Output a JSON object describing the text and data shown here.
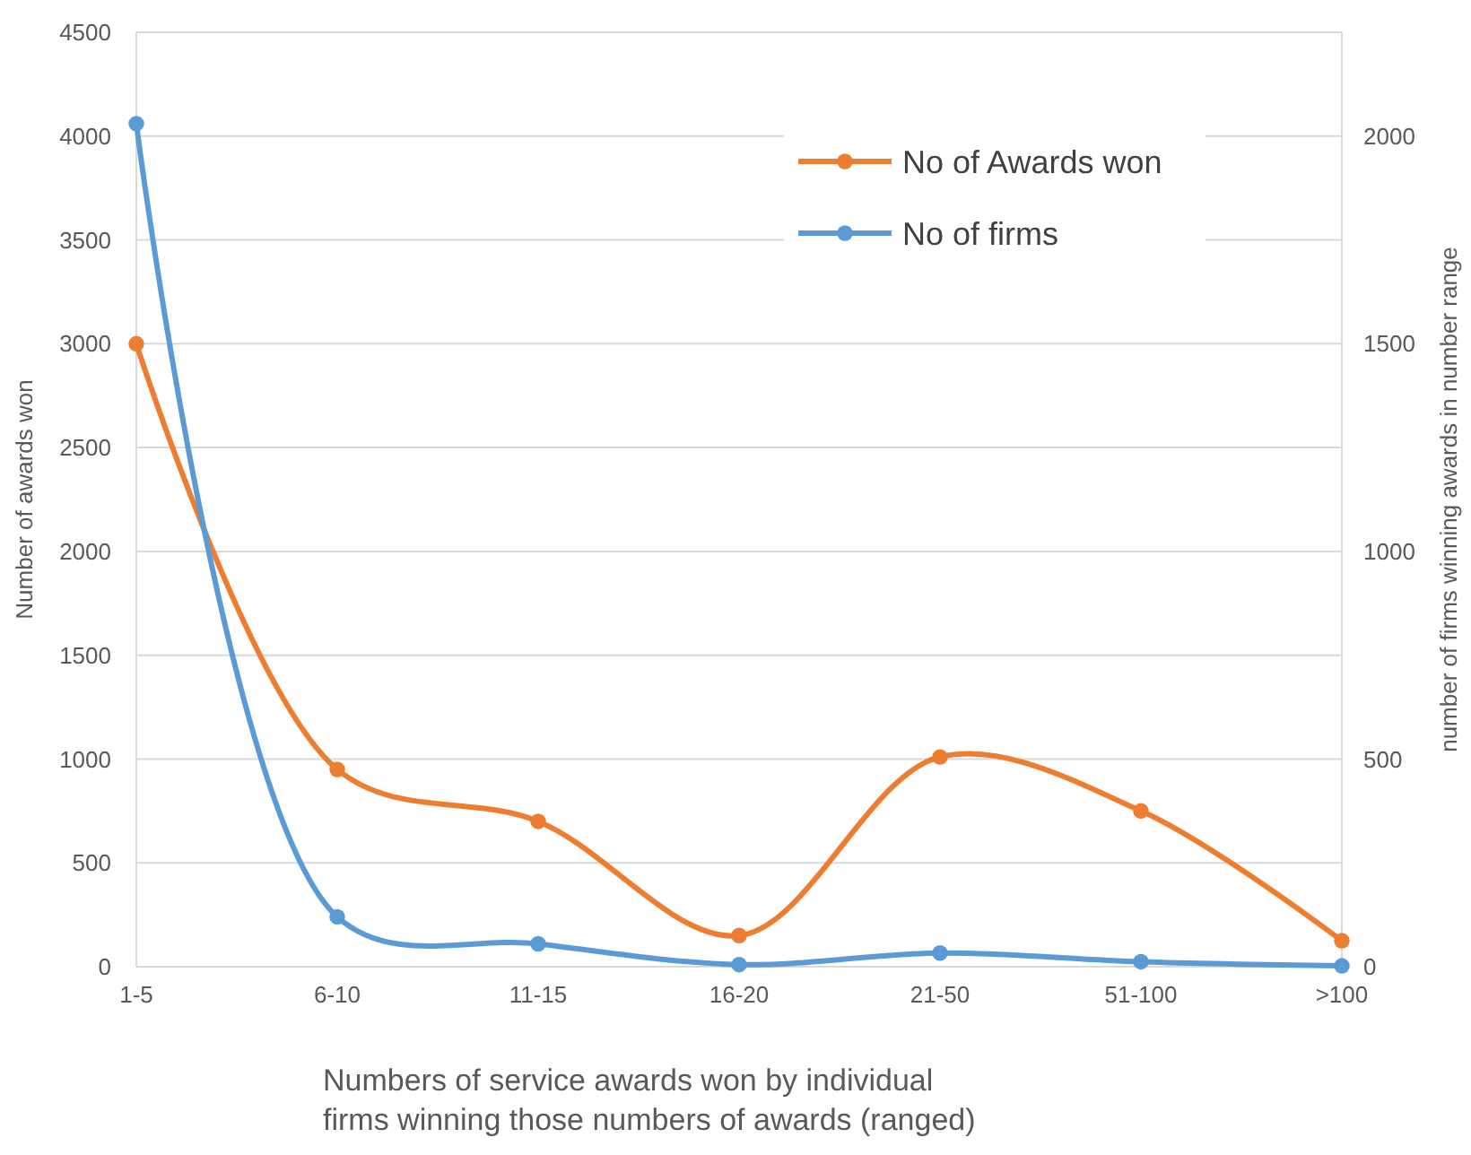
{
  "chart_data": {
    "type": "line",
    "xlabel": "Numbers of service awards won by individual firms winning those numbers of awards (ranged)",
    "ylabel": "Number of awards won",
    "y2label": "number of firms winning awards in number range",
    "categories": [
      "1-5",
      "6-10",
      "11-15",
      "16-20",
      "21-50",
      "51-100",
      ">100"
    ],
    "series": [
      {
        "name": "No of Awards won",
        "color": "#ed7d31",
        "values": [
          3000,
          950,
          700,
          150,
          1010,
          750,
          125
        ]
      },
      {
        "name": "No of firms",
        "color": "#5b9bd5",
        "axis": "y2",
        "values": [
          2030,
          120,
          55,
          5,
          33,
          12,
          2
        ]
      }
    ],
    "ylim": [
      0,
      4500
    ],
    "yticks": [
      0,
      500,
      1000,
      1500,
      2000,
      2500,
      3000,
      3500,
      4000,
      4500
    ],
    "y2lim": [
      0,
      2250
    ],
    "y2ticks": [
      0,
      500,
      1000,
      1500,
      2000
    ],
    "grid": "y",
    "legend": "top right",
    "marker": "circle",
    "line_style": "solid"
  }
}
